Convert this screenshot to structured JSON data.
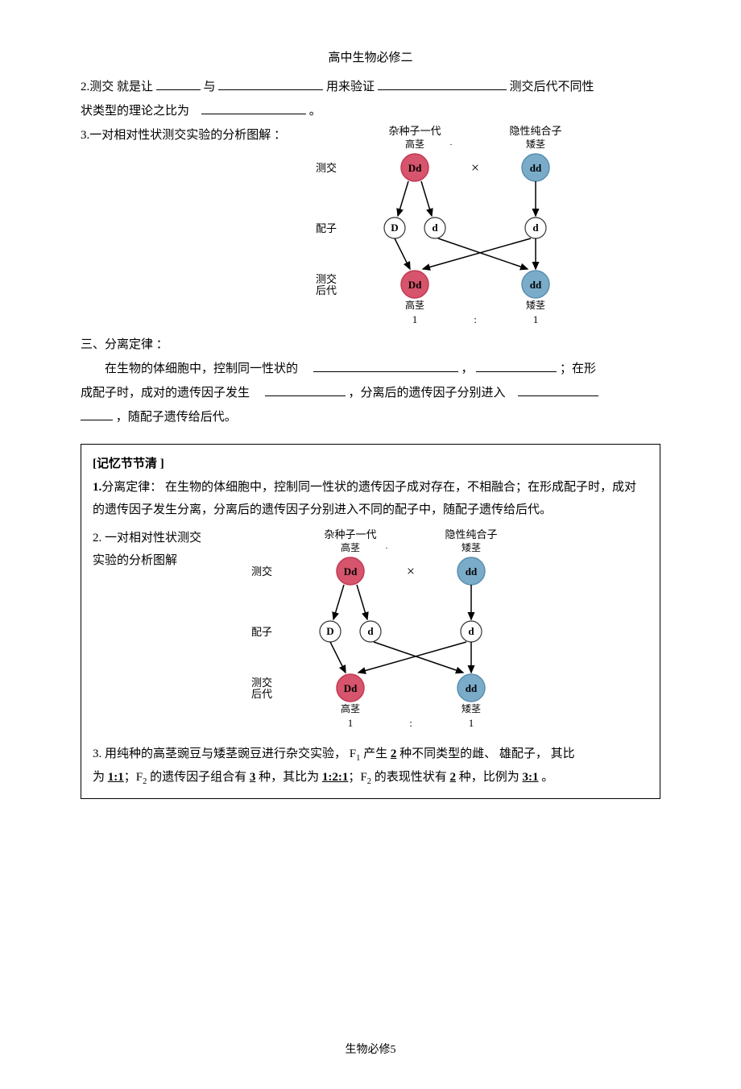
{
  "header": {
    "title": "高中生物必修二"
  },
  "q2": {
    "prefix": "2.测交 就是让",
    "mid1": "与",
    "mid2": "用来验证",
    "tail": "测交后代不同性",
    "line2_prefix": "状类型的理论之比为",
    "period": "。"
  },
  "q3": {
    "text": "3.一对相对性状测交实验的分析图解    ："
  },
  "section3": {
    "title": "三、分离定律  ：",
    "p1_a": "在生物的体细胞中，控制同一性状的",
    "p1_b": "，",
    "p1_c": "；在形",
    "p2_a": "成配子时，成对的遗传因子发生",
    "p2_b": "，分离后的遗传因子分别进入",
    "p3_a": "，随配子遗传给后代。"
  },
  "memo": {
    "heading": "[记忆节节清  ]",
    "item1_label": "1.",
    "item1_title": "分离定律：",
    "item1_body": "  在生物的体细胞中，控制同一性状的遗传因子成对存在，不相融合；在形成配子时，成对的遗传因子发生分离，分离后的遗传因子分别进入不同的配子中，随配子遗传给后代。",
    "item2_label": "2.  一对相对性状测交",
    "item2_line2": "实验的分析图解",
    "item3_a": "3.  用纯种的高茎豌豆与矮茎豌豆进行杂交实验，     F",
    "item3_b": "产生 ",
    "item3_c": " 种不同类型的雌、  雄配子， 其比",
    "item3_d": "为 ",
    "item3_e": "；F",
    "item3_f": " 的遗传因子组合有   ",
    "item3_g": " 种，其比为 ",
    "item3_h": "；F",
    "item3_i": " 的表现性状有  ",
    "item3_j": " 种，比例为 ",
    "item3_k": " 。",
    "vals": {
      "two": "2",
      "oneone": "1:1",
      "three": "3",
      "onetwoone": "1:2:1",
      "threeone": "3:1"
    }
  },
  "diagram": {
    "title_left": "杂种子一代",
    "title_right": "隐性纯合子",
    "sub_left": "高茎",
    "sub_right": "矮茎",
    "row_test": "测交",
    "row_gamete": "配子",
    "row_offspring1": "测交",
    "row_offspring2": "后代",
    "bottom_left": "高茎",
    "bottom_right": "矮茎",
    "ratio_1a": "1",
    "ratio_colon": ":",
    "ratio_1b": "1",
    "Dd": "Dd",
    "dd": "dd",
    "D": "D",
    "d": "d",
    "cross": "×",
    "dot": "·",
    "colors": {
      "pink_fill": "#d6546c",
      "pink_stroke": "#c23a55",
      "blue_fill": "#7aacc9",
      "blue_stroke": "#5a8fb0",
      "white_fill": "#ffffff",
      "circle_stroke": "#333333",
      "arrow": "#000000",
      "text": "#000000"
    },
    "font_label": 13,
    "font_node": 13,
    "font_row": 13,
    "circle_r_big": 17,
    "circle_r_small": 13
  },
  "footer": {
    "text": "生物必修",
    "page": "5"
  }
}
